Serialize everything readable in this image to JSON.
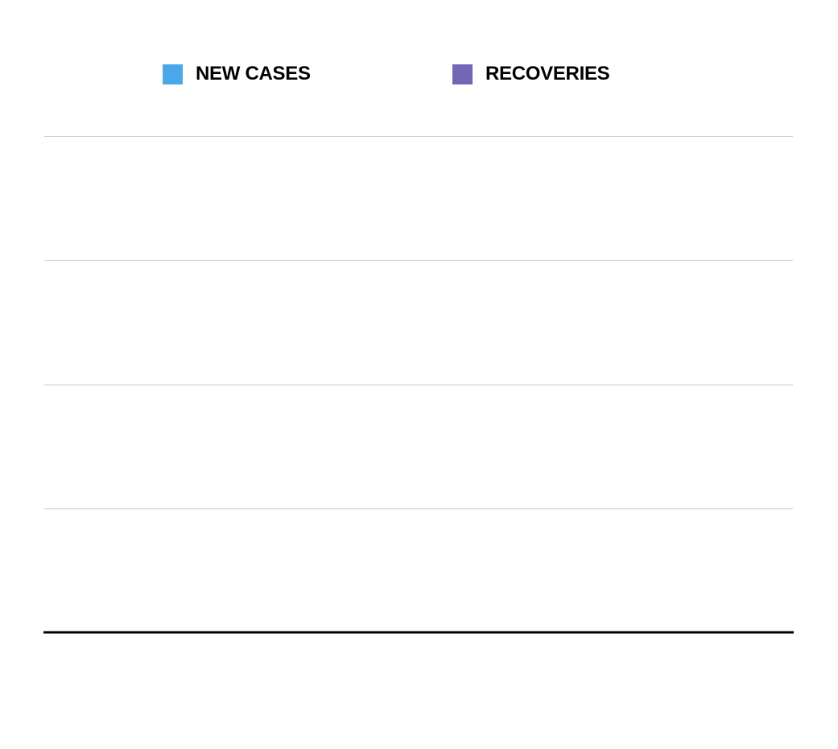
{
  "colors": {
    "new_cases": "#4aa8e8",
    "recoveries": "#7466b4",
    "grid": "#c8c8c8",
    "axis": "#000000"
  },
  "legend": {
    "items": [
      {
        "label": "NEW CASES",
        "color": "#4aa8e8"
      },
      {
        "label": "RECOVERIES",
        "color": "#7466b4"
      }
    ]
  },
  "chart_data": {
    "type": "bar",
    "title": "",
    "xlabel": "",
    "ylabel": "",
    "categories": [],
    "series": [
      {
        "name": "NEW CASES",
        "values": []
      },
      {
        "name": "RECOVERIES",
        "values": []
      }
    ],
    "grid": true,
    "legend_position": "top"
  }
}
